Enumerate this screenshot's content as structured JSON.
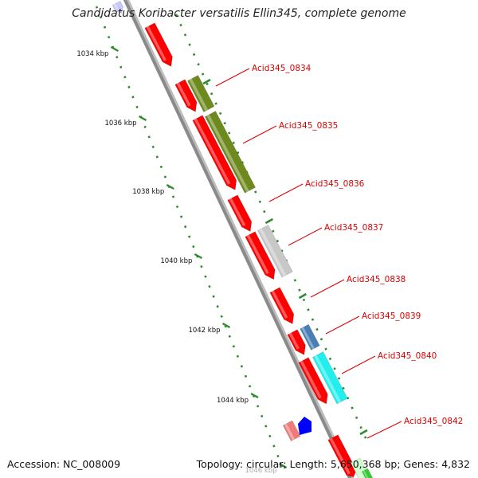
{
  "title": "Candidatus Koribacter versatilis Ellin345, complete genome",
  "footer": {
    "accession": "Accession: NC_008009",
    "topology": "Topology: circular; Length: 5,650,368 bp; Genes: 4,832"
  },
  "colors": {
    "backbone": "#8a8a8a",
    "cds": "#ff0000",
    "label": "#dd0000",
    "tick_major": "#2f8a2f",
    "olive": "#6e8a1e",
    "gray": "#c8c8c8",
    "steelblue": "#4a7fb5",
    "cyan": "#22eeee",
    "pink": "#f07a7a",
    "blue": "#0000ff",
    "light_blue": "#c8c8ff",
    "light_green": "#ccffcc",
    "green": "#33cc33"
  },
  "kbp_ticks": [
    "1034 kbp",
    "1036 kbp",
    "1038 kbp",
    "1040 kbp",
    "1042 kbp",
    "1044 kbp",
    "1046 kbp"
  ],
  "gene_labels": [
    "Acid345_0834",
    "Acid345_0835",
    "Acid345_0836",
    "Acid345_0837",
    "Acid345_0838",
    "Acid345_0839",
    "Acid345_0840",
    "Acid345_0842"
  ]
}
